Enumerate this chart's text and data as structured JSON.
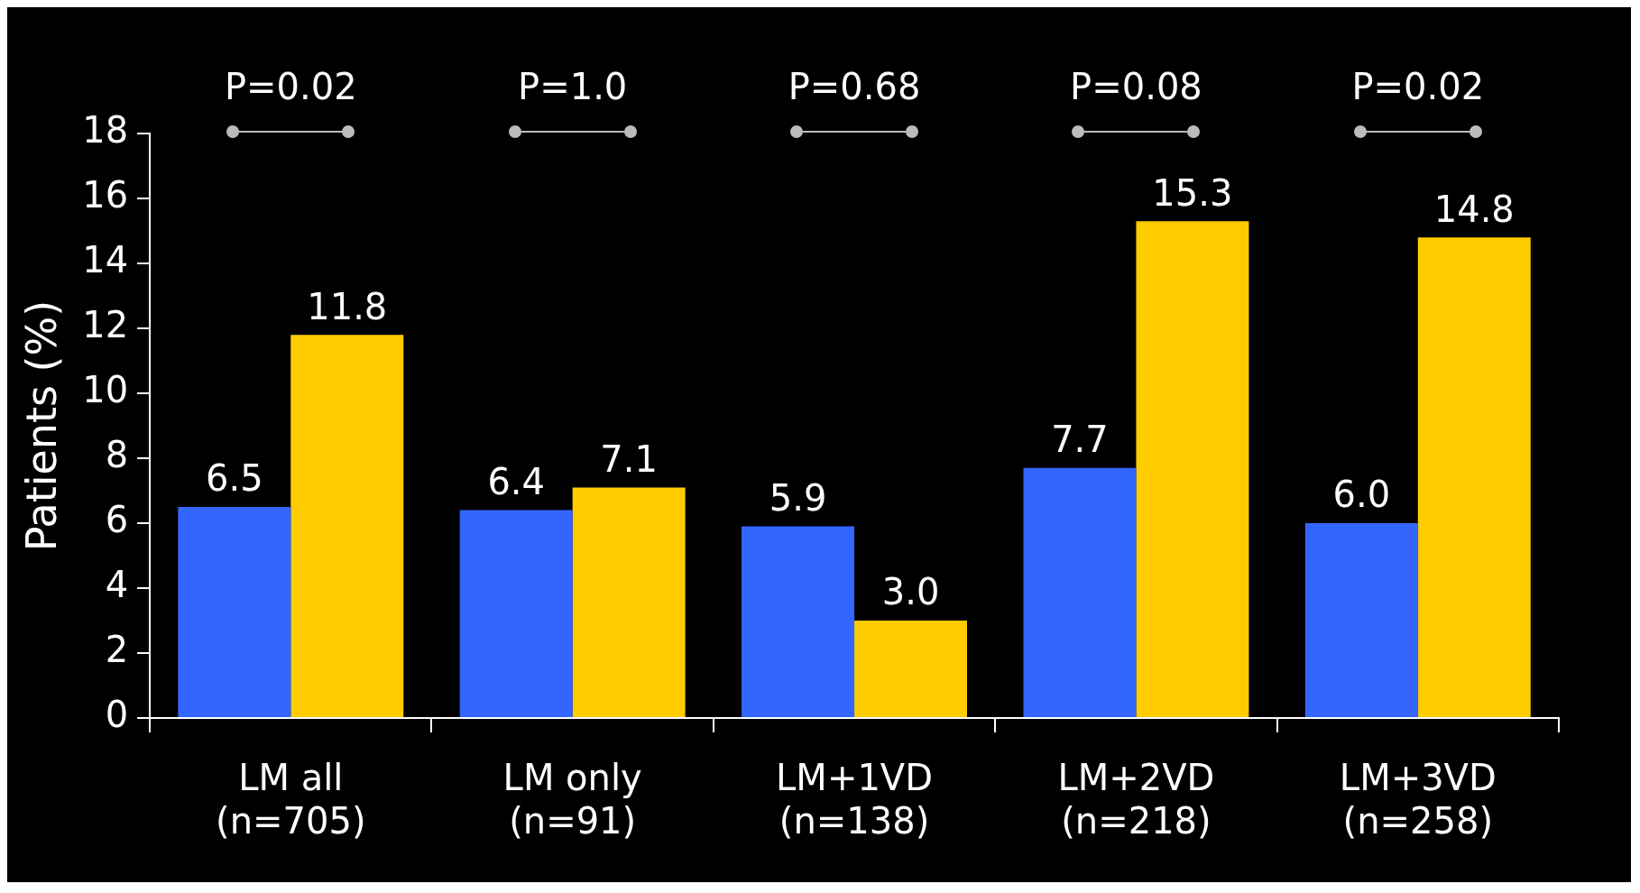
{
  "chart_data": {
    "type": "bar",
    "ylabel": "Patients (%)",
    "categories": [
      "LM all\n(n=705)",
      "LM only\n(n=91)",
      "LM+1VD\n(n=138)",
      "LM+2VD\n(n=218)",
      "LM+3VD\n(n=258)"
    ],
    "series": [
      {
        "color": "#3366ff",
        "values": [
          6.5,
          6.4,
          5.9,
          7.7,
          6.0
        ],
        "value_labels": [
          "6.5",
          "6.4",
          "5.9",
          "7.7",
          "6.0"
        ]
      },
      {
        "color": "#ffcc00",
        "values": [
          11.8,
          7.1,
          3.0,
          15.3,
          14.8
        ],
        "value_labels": [
          "11.8",
          "7.1",
          "3.0",
          "15.3",
          "14.8"
        ]
      }
    ],
    "ylim": [
      0,
      18
    ],
    "yticks": [
      0,
      2,
      4,
      6,
      8,
      10,
      12,
      14,
      16,
      18
    ],
    "grid": false,
    "legend": false,
    "annotations": [
      "P=0.02",
      "P=1.0",
      "P=0.68",
      "P=0.08",
      "P=0.02"
    ]
  }
}
